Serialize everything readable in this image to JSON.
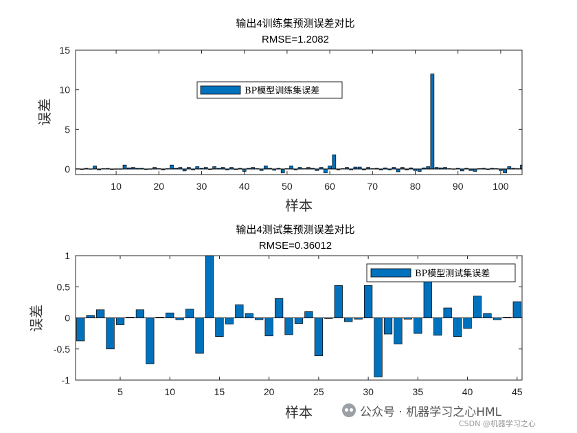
{
  "chart_data": [
    {
      "type": "bar",
      "title": "输出4训练集预测误差对比",
      "subtitle": "RMSE=1.2082",
      "xlabel": "样本",
      "ylabel": "误差",
      "xlim": [
        0.5,
        105
      ],
      "ylim": [
        -0.7,
        15
      ],
      "xticks": [
        10,
        20,
        30,
        40,
        50,
        60,
        70,
        80,
        90,
        100
      ],
      "yticks": [
        0,
        5,
        10,
        15
      ],
      "legend": "BP模型训练集误差",
      "legend_position": "top-center",
      "bar_color": "#0072BD",
      "values": [
        0.03,
        -0.05,
        0.1,
        0.02,
        0.4,
        -0.1,
        0.05,
        0.08,
        -0.03,
        0.02,
        0.02,
        0.5,
        0.15,
        0.2,
        0.1,
        0.1,
        -0.05,
        0.02,
        0.2,
        0.05,
        -0.1,
        0.05,
        0.5,
        0.1,
        0.2,
        -0.25,
        0.2,
        -0.1,
        0.3,
        0.1,
        0.2,
        -0.05,
        0.3,
        0.1,
        0.2,
        -0.1,
        0.2,
        -0.05,
        0.1,
        -0.3,
        0.1,
        0.2,
        0.05,
        -0.2,
        0.4,
        0.1,
        -0.15,
        0.1,
        -0.5,
        0.05,
        0.4,
        -0.1,
        0.2,
        0.05,
        0.2,
        0.1,
        -0.2,
        0.2,
        -0.5,
        0.4,
        1.8,
        -0.1,
        0.05,
        0.2,
        -0.1,
        0.25,
        0.25,
        -0.1,
        0.2,
        0.05,
        0.1,
        -0.1,
        0.15,
        -0.1,
        0.2,
        -0.35,
        0.2,
        -0.1,
        0.15,
        -0.2,
        -0.3,
        0.15,
        0.3,
        12.0,
        0.2,
        0.15,
        0.2,
        0.05,
        0.02,
        0.1,
        -0.25,
        0.1,
        -0.2,
        -0.3,
        0.05,
        0.1,
        -0.05,
        0.1,
        0.05,
        -0.2,
        -0.5,
        0.3,
        0.1,
        0.05,
        0.5
      ]
    },
    {
      "type": "bar",
      "title": "输出4测试集预测误差对比",
      "subtitle": "RMSE=0.36012",
      "xlabel": "样本",
      "ylabel": "误差",
      "xlim": [
        0.5,
        45.5
      ],
      "ylim": [
        -1,
        1
      ],
      "xticks": [
        5,
        10,
        15,
        20,
        25,
        30,
        35,
        40,
        45
      ],
      "yticks": [
        -1,
        -0.5,
        0,
        0.5,
        1
      ],
      "legend": "BP模型测试集误差",
      "legend_position": "top-right",
      "bar_color": "#0072BD",
      "values": [
        -0.37,
        0.04,
        0.13,
        -0.5,
        -0.11,
        0.01,
        0.13,
        -0.74,
        0.01,
        0.08,
        -0.03,
        0.14,
        -0.57,
        1.0,
        -0.3,
        -0.1,
        0.21,
        0.07,
        -0.03,
        -0.29,
        0.31,
        -0.27,
        -0.09,
        0.1,
        -0.61,
        -0.01,
        0.52,
        -0.06,
        -0.02,
        0.52,
        -0.95,
        -0.26,
        -0.42,
        -0.02,
        -0.25,
        0.7,
        -0.28,
        0.16,
        -0.3,
        -0.17,
        0.35,
        0.07,
        -0.03,
        0.01,
        0.26
      ]
    }
  ],
  "watermark": {
    "text": "公众号 · 机器学习之心HML",
    "source": "CSDN @机器学习之心"
  }
}
